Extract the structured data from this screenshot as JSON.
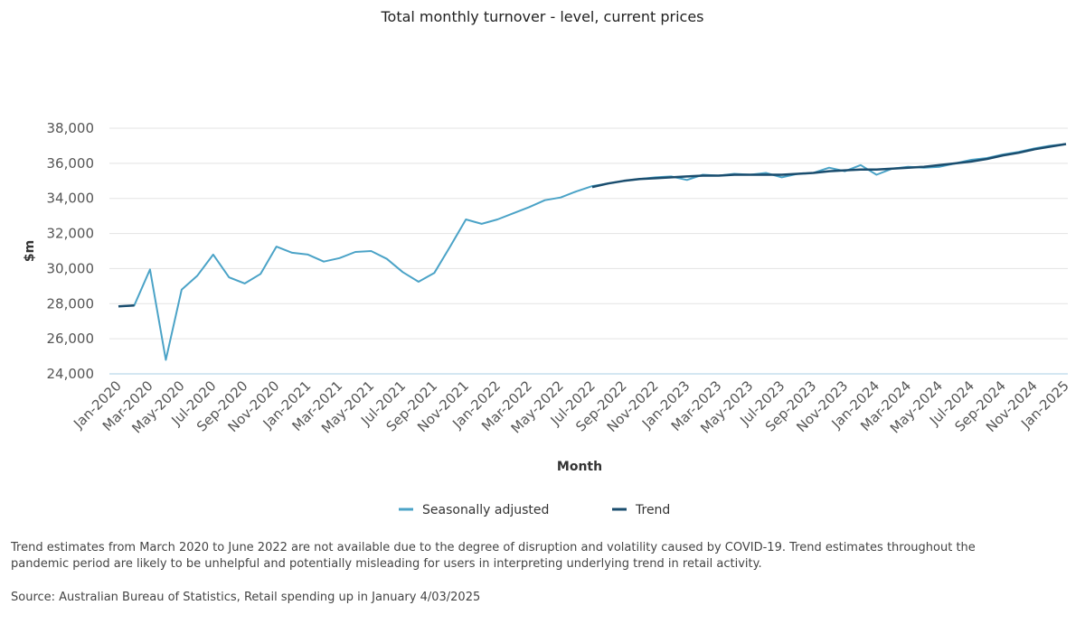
{
  "chart_data": {
    "type": "line",
    "title": "Total monthly turnover - level, current prices",
    "x_label": "Month",
    "y_label": "$m",
    "categories": [
      "Jan-2020",
      null,
      "Mar-2020",
      null,
      "May-2020",
      null,
      "Jul-2020",
      null,
      "Sep-2020",
      null,
      "Nov-2020",
      null,
      "Jan-2021",
      null,
      "Mar-2021",
      null,
      "May-2021",
      null,
      "Jul-2021",
      null,
      "Sep-2021",
      null,
      "Nov-2021",
      null,
      "Jan-2022",
      null,
      "Mar-2022",
      null,
      "May-2022",
      null,
      "Jul-2022",
      null,
      "Sep-2022",
      null,
      "Nov-2022",
      null,
      "Jan-2023",
      null,
      "Mar-2023",
      null,
      "May-2023",
      null,
      "Jul-2023",
      null,
      "Sep-2023",
      null,
      "Nov-2023",
      null,
      "Jan-2024",
      null,
      "Mar-2024",
      null,
      "May-2024",
      null,
      "Jul-2024",
      null,
      "Sep-2024",
      null,
      "Nov-2024",
      null,
      "Jan-2025"
    ],
    "series": [
      {
        "name": "Seasonally adjusted",
        "color": "#4ba3c7",
        "values": [
          27850,
          27900,
          29950,
          24800,
          28800,
          29600,
          30800,
          29500,
          29150,
          29700,
          31250,
          30900,
          30800,
          30400,
          30600,
          30950,
          31000,
          30550,
          29800,
          29250,
          29750,
          31250,
          32800,
          32550,
          32800,
          33150,
          33500,
          33900,
          34050,
          34400,
          34700,
          34850,
          35000,
          35100,
          35200,
          35250,
          35050,
          35350,
          35300,
          35400,
          35350,
          35450,
          35200,
          35400,
          35450,
          35750,
          35550,
          35900,
          35350,
          35700,
          35800,
          35750,
          35800,
          36000,
          36200,
          36300,
          36500,
          36650,
          36850,
          37000,
          37100
        ]
      },
      {
        "name": "Trend",
        "color": "#1a4d6e",
        "values": [
          27850,
          27900,
          null,
          null,
          null,
          null,
          null,
          null,
          null,
          null,
          null,
          null,
          null,
          null,
          null,
          null,
          null,
          null,
          null,
          null,
          null,
          null,
          null,
          null,
          null,
          null,
          null,
          null,
          null,
          null,
          34650,
          34850,
          35000,
          35100,
          35150,
          35200,
          35250,
          35300,
          35300,
          35350,
          35350,
          35350,
          35350,
          35400,
          35450,
          35550,
          35600,
          35650,
          35650,
          35700,
          35750,
          35800,
          35900,
          36000,
          36100,
          36250,
          36450,
          36600,
          36800,
          36950,
          37100
        ]
      }
    ],
    "ylim": [
      24000,
      38000
    ],
    "yticks": [
      {
        "value": 24000,
        "label": "24,000"
      },
      {
        "value": 26000,
        "label": "26,000"
      },
      {
        "value": 28000,
        "label": "28,000"
      },
      {
        "value": 30000,
        "label": "30,000"
      },
      {
        "value": 32000,
        "label": "32,000"
      },
      {
        "value": 34000,
        "label": "34,000"
      },
      {
        "value": 36000,
        "label": "36,000"
      },
      {
        "value": 38000,
        "label": "38,000"
      }
    ],
    "grid": true,
    "legend": "bottom",
    "footnote": "Trend estimates from March 2020 to June 2022 are not available due to the degree of disruption and volatility caused by COVID-19. Trend estimates throughout the pandemic period are likely to be unhelpful and potentially misleading for users in interpreting underlying trend in retail activity.",
    "source": "Source: Australian Bureau of Statistics, Retail spending up in January 4/03/2025"
  }
}
